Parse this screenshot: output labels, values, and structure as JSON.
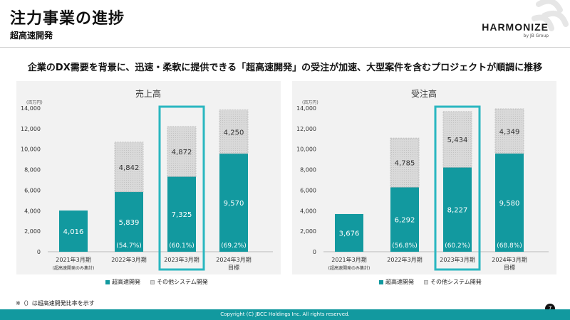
{
  "page": {
    "title": "注力事業の進捗",
    "subtitle": "超高速開発",
    "lead": "企業のDX需要を背景に、迅速・柔軟に提供できる「超高速開発」の受注が加速、大型案件を含むプロジェクトが順調に推移",
    "logo": "HARMONIZE",
    "logo_sub": "by JB Group",
    "note": "※（）は超高速開発比率を示す",
    "page_number": "7",
    "footer": "Copyright (C) JBCC Holdings Inc. All rights reserved.",
    "legend_main": "超高速開発",
    "legend_other": "その他システム開発"
  },
  "colors": {
    "main": "#12999f",
    "other": "#d9d9d9",
    "highlight": "#2ab7c0"
  },
  "chart_data": [
    {
      "type": "bar",
      "title": "売上高",
      "unit_label": "(百万円)",
      "ylim": [
        0,
        14000
      ],
      "yticks": [
        "0",
        "2,000",
        "4,000",
        "6,000",
        "8,000",
        "10,000",
        "12,000",
        "14,000"
      ],
      "categories": [
        "2021年3月期",
        "2022年3月期",
        "2023年3月期",
        "2024年3月期"
      ],
      "category_subs": [
        "(超高速開発のみ集計)",
        "",
        "",
        "目標"
      ],
      "highlight_index": 2,
      "series": [
        {
          "name": "超高速開発",
          "values": [
            4016,
            5839,
            7325,
            9570
          ],
          "labels": [
            "4,016",
            "5,839",
            "7,325",
            "9,570"
          ]
        },
        {
          "name": "その他システム開発",
          "values": [
            0,
            4842,
            4872,
            4250
          ],
          "labels": [
            "",
            "4,842",
            "4,872",
            "4,250"
          ]
        }
      ],
      "ratios": [
        "",
        "(54.7%)",
        "(60.1%)",
        "(69.2%)"
      ],
      "legend": "bottom"
    },
    {
      "type": "bar",
      "title": "受注高",
      "unit_label": "(百万円)",
      "ylim": [
        0,
        14000
      ],
      "yticks": [
        "0",
        "2,000",
        "4,000",
        "6,000",
        "8,000",
        "10,000",
        "12,000",
        "14,000"
      ],
      "categories": [
        "2021年3月期",
        "2022年3月期",
        "2023年3月期",
        "2024年3月期"
      ],
      "category_subs": [
        "(超高速開発のみ集計)",
        "",
        "",
        "目標"
      ],
      "highlight_index": 2,
      "series": [
        {
          "name": "超高速開発",
          "values": [
            3676,
            6292,
            8227,
            9580
          ],
          "labels": [
            "3,676",
            "6,292",
            "8,227",
            "9,580"
          ]
        },
        {
          "name": "その他システム開発",
          "values": [
            0,
            4785,
            5434,
            4349
          ],
          "labels": [
            "",
            "4,785",
            "5,434",
            "4,349"
          ]
        }
      ],
      "ratios": [
        "",
        "(56.8%)",
        "(60.2%)",
        "(68.8%)"
      ],
      "legend": "bottom"
    }
  ]
}
